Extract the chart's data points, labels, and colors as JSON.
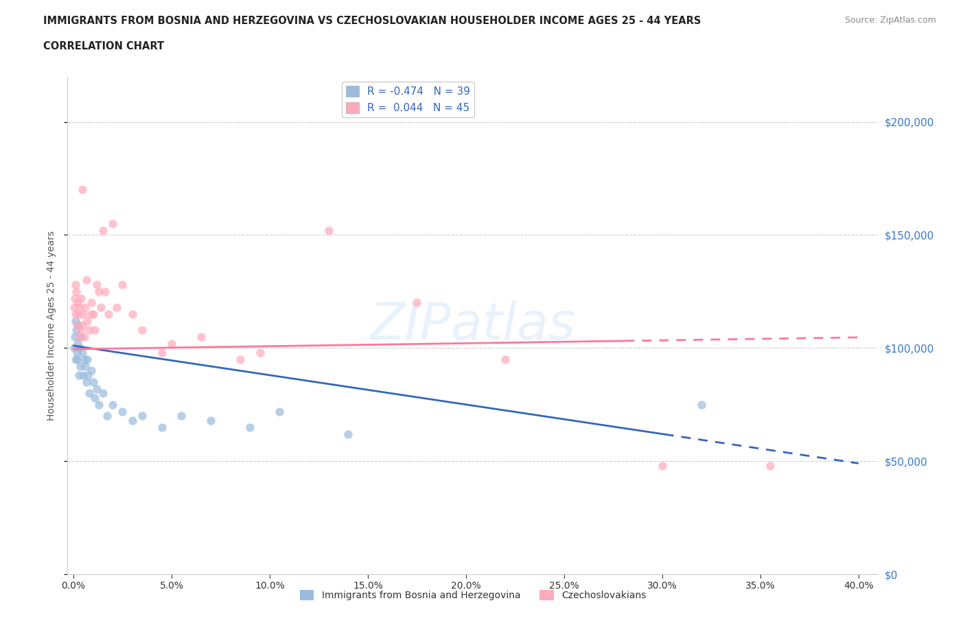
{
  "title_line1": "IMMIGRANTS FROM BOSNIA AND HERZEGOVINA VS CZECHOSLOVAKIAN HOUSEHOLDER INCOME AGES 25 - 44 YEARS",
  "title_line2": "CORRELATION CHART",
  "source_text": "Source: ZipAtlas.com",
  "xlim": [
    0,
    40
  ],
  "ylim": [
    0,
    220000
  ],
  "yticks": [
    0,
    50000,
    100000,
    150000,
    200000
  ],
  "xticks": [
    0,
    5,
    10,
    15,
    20,
    25,
    30,
    35,
    40
  ],
  "watermark": "ZIPatlas",
  "legend_entry1_r": "-0.474",
  "legend_entry1_n": "39",
  "legend_entry2_r": "0.044",
  "legend_entry2_n": "45",
  "legend_label1": "Immigrants from Bosnia and Herzegovina",
  "legend_label2": "Czechoslovakians",
  "color_blue": "#99BBDD",
  "color_pink": "#FFAABB",
  "color_blue_line": "#3366BB",
  "color_pink_line": "#FF7799",
  "color_blue_dark": "#3366BB",
  "color_pink_dark": "#EE6688",
  "bosnia_x": [
    0.05,
    0.08,
    0.1,
    0.12,
    0.15,
    0.18,
    0.2,
    0.22,
    0.25,
    0.28,
    0.3,
    0.35,
    0.4,
    0.45,
    0.5,
    0.55,
    0.6,
    0.65,
    0.7,
    0.75,
    0.8,
    0.9,
    1.0,
    1.1,
    1.2,
    1.3,
    1.5,
    1.7,
    2.0,
    2.5,
    3.0,
    3.5,
    4.5,
    5.5,
    7.0,
    9.0,
    10.5,
    14.0,
    32.0
  ],
  "bosnia_y": [
    100000,
    105000,
    112000,
    95000,
    108000,
    98000,
    102000,
    95000,
    110000,
    88000,
    100000,
    92000,
    105000,
    98000,
    88000,
    95000,
    92000,
    85000,
    95000,
    88000,
    80000,
    90000,
    85000,
    78000,
    82000,
    75000,
    80000,
    70000,
    75000,
    72000,
    68000,
    70000,
    65000,
    70000,
    68000,
    65000,
    72000,
    62000,
    75000
  ],
  "czech_x": [
    0.05,
    0.08,
    0.1,
    0.12,
    0.15,
    0.18,
    0.2,
    0.25,
    0.28,
    0.3,
    0.35,
    0.4,
    0.45,
    0.5,
    0.55,
    0.6,
    0.7,
    0.8,
    0.9,
    1.0,
    1.2,
    1.4,
    1.6,
    1.8,
    2.0,
    2.5,
    3.0,
    3.5,
    4.5,
    5.0,
    6.5,
    8.5,
    9.5,
    13.0,
    17.5,
    22.0,
    30.0,
    35.5,
    1.3,
    2.2,
    0.65,
    1.1,
    0.9,
    1.5,
    0.45
  ],
  "czech_y": [
    118000,
    122000,
    128000,
    115000,
    125000,
    110000,
    120000,
    115000,
    105000,
    118000,
    108000,
    122000,
    110000,
    115000,
    105000,
    118000,
    112000,
    108000,
    120000,
    115000,
    128000,
    118000,
    125000,
    115000,
    155000,
    128000,
    115000,
    108000,
    98000,
    102000,
    105000,
    95000,
    98000,
    152000,
    120000,
    95000,
    48000,
    48000,
    125000,
    118000,
    130000,
    108000,
    115000,
    152000,
    170000
  ],
  "background_color": "#FFFFFF",
  "grid_color": "#BBBBBB",
  "ylabel": "Householder Income Ages 25 - 44 years"
}
